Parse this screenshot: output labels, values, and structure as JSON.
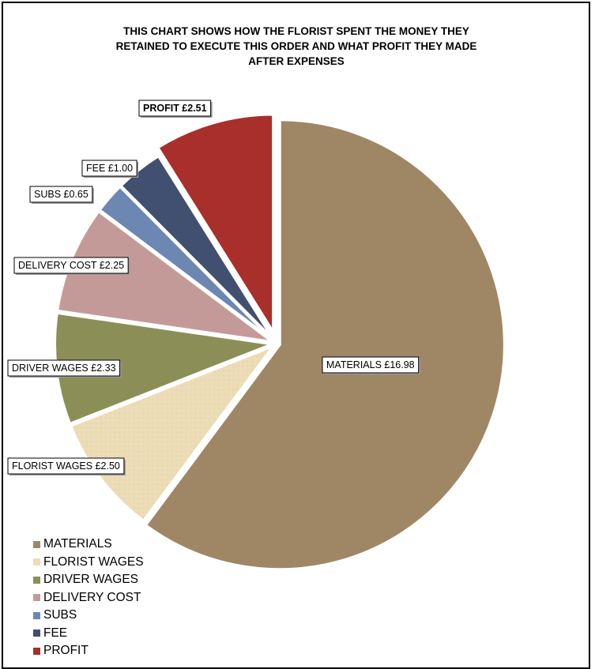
{
  "chart_data": {
    "type": "pie",
    "title": "THIS CHART SHOWS HOW THE FLORIST SPENT THE MONEY THEY\nRETAINED TO EXECUTE THIS ORDER AND WHAT PROFIT THEY MADE\nAFTER EXPENSES",
    "categories": [
      "MATERIALS",
      "FLORIST WAGES",
      "DRIVER WAGES",
      "DELIVERY COST",
      "SUBS",
      "FEE",
      "PROFIT"
    ],
    "values": [
      16.98,
      2.5,
      2.33,
      2.25,
      0.65,
      1.0,
      2.51
    ],
    "data_labels": [
      "MATERIALS £16.98",
      "FLORIST WAGES £2.50",
      "DRIVER WAGES £2.33",
      "DELIVERY COST £2.25",
      "SUBS £0.65",
      "FEE £1.00",
      "PROFIT £2.51"
    ],
    "colors": [
      "#9f8766",
      "#ecdcb6",
      "#8b8f57",
      "#c49a99",
      "#6d87b3",
      "#414f70",
      "#a82f2a"
    ],
    "exploded": [
      "PROFIT"
    ],
    "legend": "bottom-left"
  }
}
